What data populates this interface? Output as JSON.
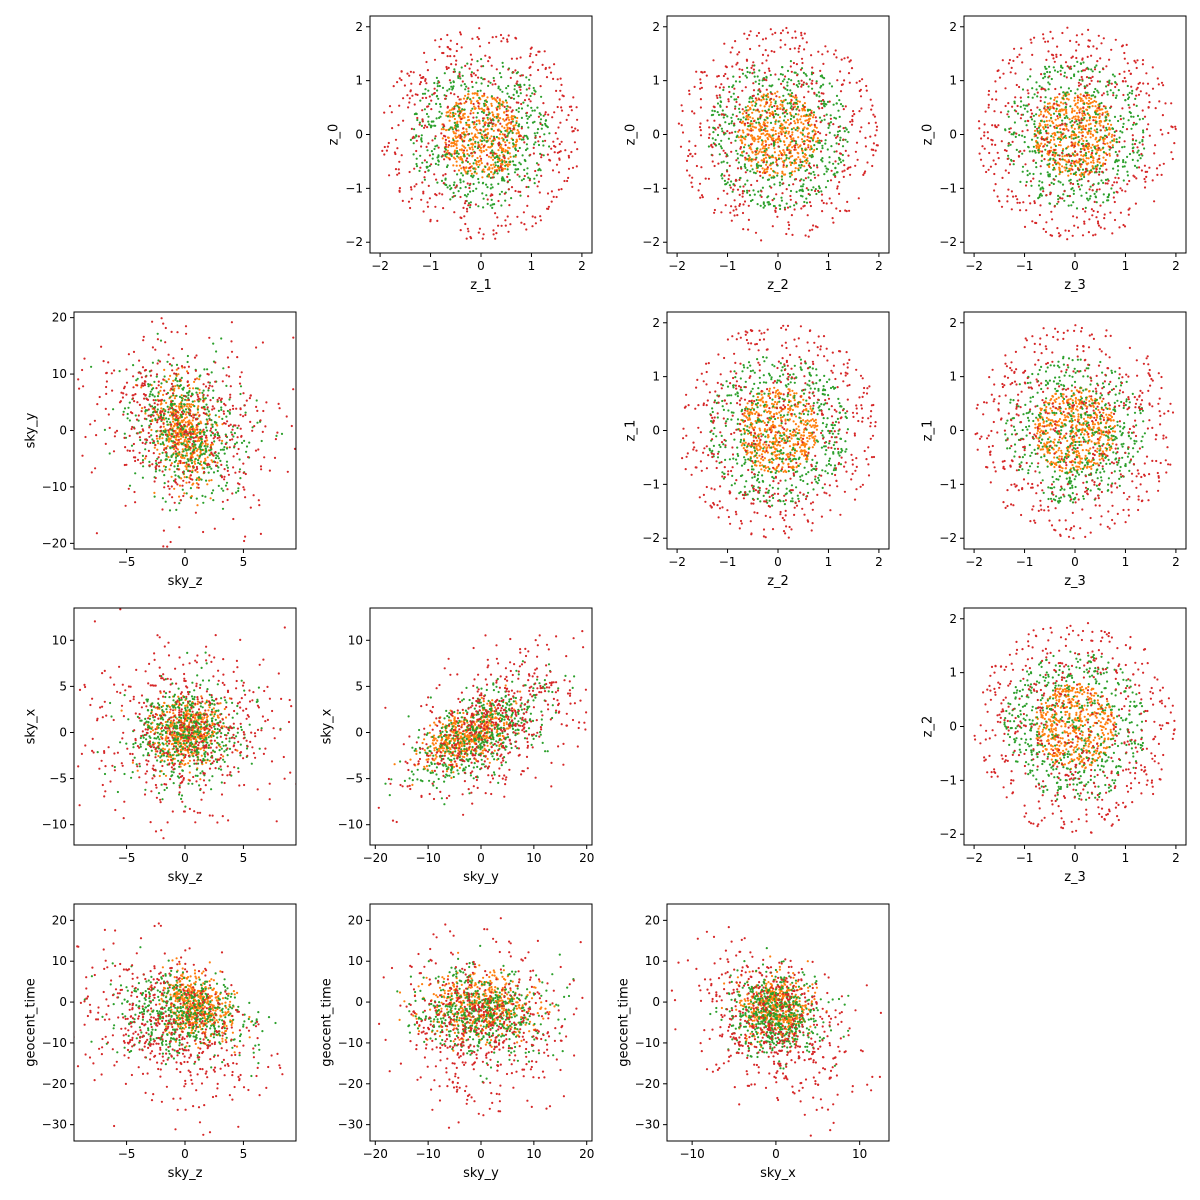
{
  "colors": {
    "background": "#ffffff",
    "axes": "#000000",
    "series_blue": "#1f77b4",
    "series_orange": "#ff7f0e",
    "series_green": "#2ca02c",
    "series_red": "#d62728"
  },
  "chart_data": [
    {
      "type": "scatter",
      "xlabel": "z_1",
      "ylabel": "z_0",
      "xlim": [
        -2.2,
        2.2
      ],
      "ylim": [
        -2.2,
        2.2
      ],
      "xticks": [
        -2,
        -1,
        0,
        1,
        2
      ],
      "yticks": [
        -2,
        -1,
        0,
        1,
        2
      ],
      "pattern": "rings",
      "grid": false,
      "series": [
        {
          "color": "#ff7f0e",
          "radius": 0.8
        },
        {
          "color": "#2ca02c",
          "radius": 1.4
        },
        {
          "color": "#d62728",
          "radius": 2.0
        }
      ]
    },
    {
      "type": "scatter",
      "xlabel": "z_2",
      "ylabel": "z_0",
      "xlim": [
        -2.2,
        2.2
      ],
      "ylim": [
        -2.2,
        2.2
      ],
      "xticks": [
        -2,
        -1,
        0,
        1,
        2
      ],
      "yticks": [
        -2,
        -1,
        0,
        1,
        2
      ],
      "pattern": "rings",
      "grid": false,
      "series": [
        {
          "color": "#ff7f0e",
          "radius": 0.8
        },
        {
          "color": "#2ca02c",
          "radius": 1.4
        },
        {
          "color": "#d62728",
          "radius": 2.0
        }
      ]
    },
    {
      "type": "scatter",
      "xlabel": "z_3",
      "ylabel": "z_0",
      "xlim": [
        -2.2,
        2.2
      ],
      "ylim": [
        -2.2,
        2.2
      ],
      "xticks": [
        -2,
        -1,
        0,
        1,
        2
      ],
      "yticks": [
        -2,
        -1,
        0,
        1,
        2
      ],
      "pattern": "rings",
      "grid": false,
      "series": [
        {
          "color": "#ff7f0e",
          "radius": 0.8
        },
        {
          "color": "#2ca02c",
          "radius": 1.4
        },
        {
          "color": "#d62728",
          "radius": 2.0
        }
      ]
    },
    {
      "type": "scatter",
      "xlabel": "sky_z",
      "ylabel": "sky_y",
      "xlim": [
        -9.5,
        9.5
      ],
      "ylim": [
        -21,
        21
      ],
      "xticks": [
        -5,
        0,
        5
      ],
      "yticks": [
        -20,
        -10,
        0,
        10,
        20
      ],
      "pattern": "blob",
      "grid": false,
      "series": [
        {
          "color": "#ff7f0e",
          "cx": 0,
          "cy": 0,
          "sx": 1.3,
          "sy": 4.5,
          "rho": -0.3
        },
        {
          "color": "#2ca02c",
          "cx": 0,
          "cy": 0,
          "sx": 2.5,
          "sy": 6,
          "rho": -0.2
        },
        {
          "color": "#d62728",
          "cx": 0,
          "cy": 1,
          "sx": 4,
          "sy": 8,
          "rho": -0.2
        }
      ]
    },
    {
      "type": "scatter",
      "xlabel": "z_2",
      "ylabel": "z_1",
      "xlim": [
        -2.2,
        2.2
      ],
      "ylim": [
        -2.2,
        2.2
      ],
      "xticks": [
        -2,
        -1,
        0,
        1,
        2
      ],
      "yticks": [
        -2,
        -1,
        0,
        1,
        2
      ],
      "pattern": "rings",
      "grid": false,
      "series": [
        {
          "color": "#ff7f0e",
          "radius": 0.8
        },
        {
          "color": "#2ca02c",
          "radius": 1.4
        },
        {
          "color": "#d62728",
          "radius": 2.0
        }
      ]
    },
    {
      "type": "scatter",
      "xlabel": "z_3",
      "ylabel": "z_1",
      "xlim": [
        -2.2,
        2.2
      ],
      "ylim": [
        -2.2,
        2.2
      ],
      "xticks": [
        -2,
        -1,
        0,
        1,
        2
      ],
      "yticks": [
        -2,
        -1,
        0,
        1,
        2
      ],
      "pattern": "rings",
      "grid": false,
      "series": [
        {
          "color": "#ff7f0e",
          "radius": 0.8
        },
        {
          "color": "#2ca02c",
          "radius": 1.4
        },
        {
          "color": "#d62728",
          "radius": 2.0
        }
      ]
    },
    {
      "type": "scatter",
      "xlabel": "sky_z",
      "ylabel": "sky_x",
      "xlim": [
        -9.5,
        9.5
      ],
      "ylim": [
        -12.2,
        13.5
      ],
      "xticks": [
        -5,
        0,
        5
      ],
      "yticks": [
        -10,
        -5,
        0,
        5,
        10
      ],
      "pattern": "blob",
      "grid": false,
      "series": [
        {
          "color": "#ff7f0e",
          "cx": 0,
          "cy": 0,
          "sx": 1.6,
          "sy": 1.8,
          "rho": 0
        },
        {
          "color": "#2ca02c",
          "cx": 0,
          "cy": 0,
          "sx": 2.5,
          "sy": 2.8,
          "rho": 0
        },
        {
          "color": "#d62728",
          "cx": 0,
          "cy": 0,
          "sx": 4,
          "sy": 4.5,
          "rho": 0
        }
      ]
    },
    {
      "type": "scatter",
      "xlabel": "sky_y",
      "ylabel": "sky_x",
      "xlim": [
        -21,
        21
      ],
      "ylim": [
        -12.2,
        13.5
      ],
      "xticks": [
        -20,
        -10,
        0,
        10,
        20
      ],
      "yticks": [
        -10,
        -5,
        0,
        5,
        10
      ],
      "pattern": "blob",
      "grid": false,
      "series": [
        {
          "color": "#ff7f0e",
          "cx": -3,
          "cy": -0.5,
          "sx": 4,
          "sy": 1.6,
          "rho": 0.5
        },
        {
          "color": "#2ca02c",
          "cx": 0,
          "cy": 0,
          "sx": 6,
          "sy": 2.8,
          "rho": 0.6
        },
        {
          "color": "#d62728",
          "cx": 3,
          "cy": 1,
          "sx": 8,
          "sy": 4,
          "rho": 0.5
        }
      ]
    },
    {
      "type": "scatter",
      "xlabel": "z_3",
      "ylabel": "z_2",
      "xlim": [
        -2.2,
        2.2
      ],
      "ylim": [
        -2.2,
        2.2
      ],
      "xticks": [
        -2,
        -1,
        0,
        1,
        2
      ],
      "yticks": [
        -2,
        -1,
        0,
        1,
        2
      ],
      "pattern": "rings",
      "grid": false,
      "series": [
        {
          "color": "#ff7f0e",
          "radius": 0.8
        },
        {
          "color": "#2ca02c",
          "radius": 1.4
        },
        {
          "color": "#d62728",
          "radius": 2.0
        }
      ]
    },
    {
      "type": "scatter",
      "xlabel": "sky_z",
      "ylabel": "geocent_time",
      "xlim": [
        -9.5,
        9.5
      ],
      "ylim": [
        -34,
        24
      ],
      "xticks": [
        -5,
        0,
        5
      ],
      "yticks": [
        -30,
        -20,
        -10,
        0,
        10,
        20
      ],
      "pattern": "blob",
      "grid": false,
      "series": [
        {
          "color": "#ff7f0e",
          "cx": 1,
          "cy": -1,
          "sx": 1.5,
          "sy": 4,
          "rho": -0.2
        },
        {
          "color": "#2ca02c",
          "cx": 0,
          "cy": -3,
          "sx": 2.8,
          "sy": 5,
          "rho": -0.2
        },
        {
          "color": "#d62728",
          "cx": -1,
          "cy": -6,
          "sx": 4,
          "sy": 9,
          "rho": -0.3
        }
      ]
    },
    {
      "type": "scatter",
      "xlabel": "sky_y",
      "ylabel": "geocent_time",
      "xlim": [
        -21,
        21
      ],
      "ylim": [
        -34,
        24
      ],
      "xticks": [
        -20,
        -10,
        0,
        10,
        20
      ],
      "yticks": [
        -30,
        -20,
        -10,
        0,
        10,
        20
      ],
      "pattern": "blob",
      "grid": false,
      "series": [
        {
          "color": "#ff7f0e",
          "cx": 0,
          "cy": -1,
          "sx": 5,
          "sy": 4,
          "rho": 0
        },
        {
          "color": "#2ca02c",
          "cx": 0,
          "cy": -3,
          "sx": 6,
          "sy": 5,
          "rho": 0
        },
        {
          "color": "#d62728",
          "cx": 0,
          "cy": -6,
          "sx": 8,
          "sy": 9,
          "rho": 0
        }
      ]
    },
    {
      "type": "scatter",
      "xlabel": "sky_x",
      "ylabel": "geocent_time",
      "xlim": [
        -13,
        13.5
      ],
      "ylim": [
        -34,
        24
      ],
      "xticks": [
        -10,
        0,
        10
      ],
      "yticks": [
        -30,
        -20,
        -10,
        0,
        10,
        20
      ],
      "pattern": "blob",
      "grid": false,
      "series": [
        {
          "color": "#ff7f0e",
          "cx": 0,
          "cy": -1,
          "sx": 2,
          "sy": 4,
          "rho": 0
        },
        {
          "color": "#2ca02c",
          "cx": 0,
          "cy": -3,
          "sx": 2.8,
          "sy": 5,
          "rho": -0.1
        },
        {
          "color": "#d62728",
          "cx": 0,
          "cy": -6,
          "sx": 4.5,
          "sy": 9,
          "rho": -0.3
        }
      ]
    }
  ]
}
